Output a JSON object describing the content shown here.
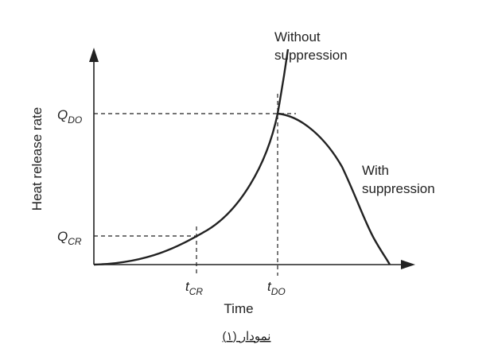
{
  "y_axis_label": "Heat release rate",
  "x_axis_label": "Time",
  "levels": {
    "q_do": {
      "main": "Q",
      "sub": "DO"
    },
    "q_cr": {
      "main": "Q",
      "sub": "CR"
    }
  },
  "times": {
    "t_cr": {
      "main": "t",
      "sub": "CR"
    },
    "t_do": {
      "main": "t",
      "sub": "DO"
    }
  },
  "curves": {
    "without": [
      "Without",
      "suppression"
    ],
    "with": [
      "With",
      "suppression"
    ]
  },
  "caption": "نمودار (۱)"
}
